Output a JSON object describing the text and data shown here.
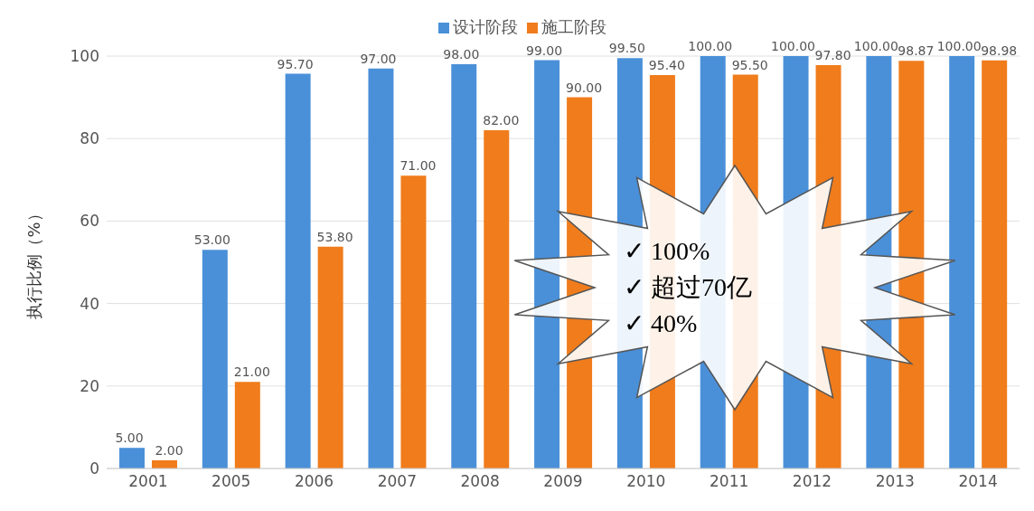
{
  "chart_data": {
    "type": "bar",
    "ylabel": "执行比例（%）",
    "categories": [
      "2001",
      "2005",
      "2006",
      "2007",
      "2008",
      "2009",
      "2010",
      "2011",
      "2012",
      "2013",
      "2014"
    ],
    "series": [
      {
        "name": "设计阶段",
        "color": "#4a90d9",
        "values": [
          5,
          53,
          95.7,
          97,
          98,
          99,
          99.5,
          100,
          100,
          100,
          100
        ],
        "value_labels": [
          "5.00",
          "53.00",
          "95.70",
          "97.00",
          "98.00",
          "99.00",
          "99.50",
          "100.00",
          "100.00",
          "100.00",
          "100.00"
        ]
      },
      {
        "name": "施工阶段",
        "color": "#f07c1c",
        "values": [
          2,
          21,
          53.8,
          71,
          82,
          90,
          95.4,
          95.5,
          97.8,
          98.87,
          98.98
        ],
        "value_labels": [
          "2.00",
          "21.00",
          "53.80",
          "71.00",
          "82.00",
          "90.00",
          "95.40",
          "95.50",
          "97.80",
          "98.87",
          "98.98"
        ]
      }
    ],
    "ylim": [
      0,
      100
    ],
    "yticks": [
      0,
      20,
      40,
      60,
      80,
      100
    ],
    "grid": "y",
    "legend": "top",
    "annotations": [
      "✓  100%",
      "✓  超过70亿",
      "✓  40%"
    ]
  }
}
